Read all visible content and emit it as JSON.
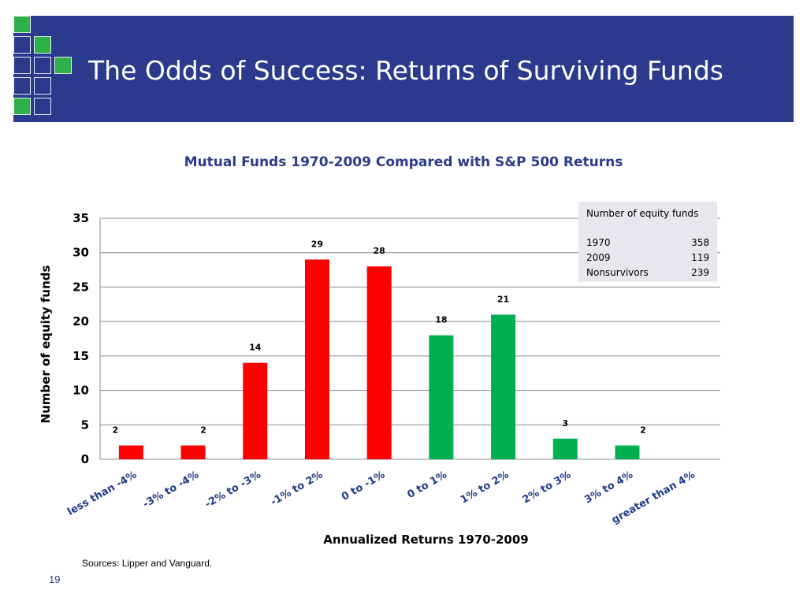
{
  "slide": {
    "title": "The Odds of Success:  Returns of Surviving Funds",
    "subtitle": "Mutual Funds 1970-2009  Compared with S&P 500 Returns",
    "source": "Sources: Lipper and Vanguard.",
    "page_number": "19",
    "colors": {
      "header": "#2b3a8c",
      "accent_green": "#2fb04a"
    }
  },
  "info_box": {
    "heading": "Number of equity funds",
    "rows": [
      {
        "label": "1970",
        "value": "358"
      },
      {
        "label": "2009",
        "value": "119"
      },
      {
        "label": "Nonsurvivors",
        "value": "239"
      }
    ]
  },
  "chart_data": {
    "type": "bar",
    "categories": [
      "less than -4%",
      "-3% to -4%",
      "-2% to -3%",
      "-1% to 2%",
      "0 to -1%",
      "0 to 1%",
      "1% to 2%",
      "2% to 3%",
      "3% to 4%",
      "greater than 4%"
    ],
    "values": [
      2,
      2,
      14,
      29,
      28,
      18,
      21,
      3,
      2,
      null
    ],
    "data_labels": [
      "2",
      "2",
      "14",
      "29",
      "28",
      "18",
      "21",
      "3",
      "2",
      ""
    ],
    "bar_colors": [
      "#ff0000",
      "#ff0000",
      "#ff0000",
      "#ff0000",
      "#ff0000",
      "#00b050",
      "#00b050",
      "#00b050",
      "#00b050",
      "#00b050"
    ],
    "xlabel": "Annualized Returns 1970-2009",
    "ylabel": "Number of equity funds",
    "ylim": [
      0,
      35
    ],
    "yticks": [
      0,
      5,
      10,
      15,
      20,
      25,
      30,
      35
    ],
    "grid": true
  }
}
